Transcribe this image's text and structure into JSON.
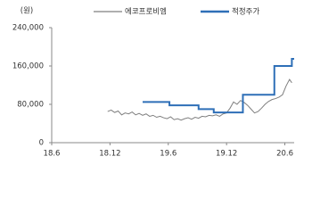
{
  "chart_data": {
    "type": "line",
    "y_label": "(원)",
    "xticks": [
      {
        "value": 2018.42,
        "label": "18.6"
      },
      {
        "value": 2018.92,
        "label": "18.12"
      },
      {
        "value": 2019.42,
        "label": "19.6"
      },
      {
        "value": 2019.92,
        "label": "19.12"
      },
      {
        "value": 2020.42,
        "label": "20.6"
      }
    ],
    "xlim": [
      2018.42,
      2020.5
    ],
    "ylim": [
      0,
      240000
    ],
    "yticks": [
      0,
      {
        "value": 80000,
        "label": "80,000"
      },
      {
        "value": 160000,
        "label": "160,000"
      },
      {
        "value": 240000,
        "label": "240,000"
      }
    ],
    "series": [
      {
        "name": "에코프로비엠",
        "color": "#7f7f7f",
        "x": [
          2018.9,
          2018.93,
          2018.96,
          2018.99,
          2019.02,
          2019.05,
          2019.08,
          2019.11,
          2019.14,
          2019.17,
          2019.2,
          2019.23,
          2019.26,
          2019.29,
          2019.32,
          2019.35,
          2019.38,
          2019.41,
          2019.44,
          2019.47,
          2019.5,
          2019.53,
          2019.56,
          2019.59,
          2019.62,
          2019.65,
          2019.68,
          2019.71,
          2019.74,
          2019.77,
          2019.8,
          2019.83,
          2019.86,
          2019.89,
          2019.92,
          2019.95,
          2019.98,
          2020.01,
          2020.04,
          2020.07,
          2020.1,
          2020.13,
          2020.16,
          2020.19,
          2020.22,
          2020.25,
          2020.28,
          2020.31,
          2020.34,
          2020.37,
          2020.4,
          2020.43,
          2020.46,
          2020.48
        ],
        "values": [
          65000,
          68000,
          63000,
          66000,
          58000,
          62000,
          60000,
          64000,
          58000,
          61000,
          57000,
          60000,
          55000,
          57000,
          53000,
          55000,
          52000,
          50000,
          54000,
          48000,
          50000,
          47000,
          50000,
          52000,
          49000,
          53000,
          51000,
          55000,
          54000,
          57000,
          56000,
          58000,
          55000,
          60000,
          62000,
          72000,
          85000,
          80000,
          88000,
          84000,
          78000,
          70000,
          62000,
          65000,
          72000,
          80000,
          86000,
          90000,
          92000,
          95000,
          100000,
          118000,
          132000,
          125000
        ]
      },
      {
        "name": "적정주가",
        "color": "#2e6fb7",
        "step": "post",
        "x": [
          2019.2,
          2019.43,
          2019.68,
          2019.81,
          2020.06,
          2020.33,
          2020.48,
          2020.5
        ],
        "values": [
          85000,
          78000,
          70000,
          63000,
          100000,
          160000,
          175000,
          175000
        ]
      }
    ]
  }
}
